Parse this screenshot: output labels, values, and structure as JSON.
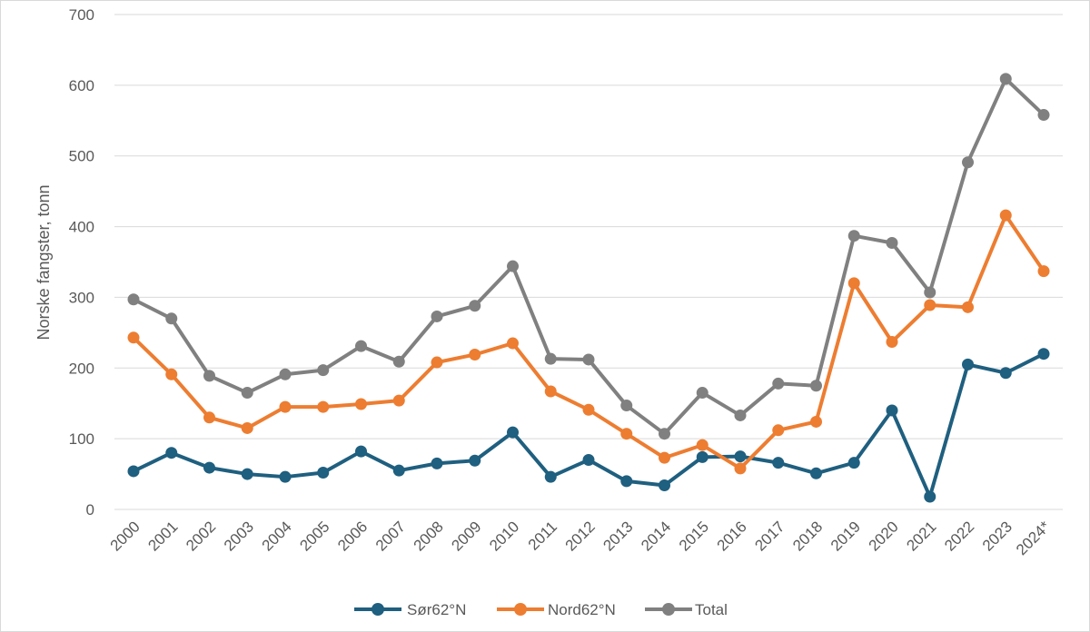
{
  "chart_data": {
    "type": "line",
    "title": "",
    "xlabel": "",
    "ylabel": "Norske fangster, tonn",
    "ylim": [
      0,
      700
    ],
    "yticks": [
      0,
      100,
      200,
      300,
      400,
      500,
      600,
      700
    ],
    "grid": "horizontal",
    "legend_position": "bottom",
    "categories": [
      "2000",
      "2001",
      "2002",
      "2003",
      "2004",
      "2005",
      "2006",
      "2007",
      "2008",
      "2009",
      "2010",
      "2011",
      "2012",
      "2013",
      "2014",
      "2015",
      "2016",
      "2017",
      "2018",
      "2019",
      "2020",
      "2021",
      "2022",
      "2023",
      "2024*"
    ],
    "series": [
      {
        "name": "Sør62°N",
        "color": "#1f5f7f",
        "values": [
          54,
          80,
          59,
          50,
          46,
          52,
          82,
          55,
          65,
          69,
          109,
          46,
          70,
          40,
          34,
          74,
          75,
          66,
          51,
          66,
          140,
          18,
          205,
          193,
          220
        ]
      },
      {
        "name": "Nord62°N",
        "color": "#ed7d31",
        "values": [
          243,
          191,
          130,
          115,
          145,
          145,
          149,
          154,
          208,
          219,
          235,
          167,
          141,
          107,
          73,
          91,
          58,
          112,
          124,
          320,
          237,
          289,
          286,
          416,
          337
        ]
      },
      {
        "name": "Total",
        "color": "#808080",
        "values": [
          297,
          270,
          189,
          165,
          191,
          197,
          231,
          209,
          273,
          288,
          344,
          213,
          212,
          147,
          107,
          165,
          133,
          178,
          175,
          387,
          377,
          307,
          491,
          609,
          558
        ]
      }
    ]
  }
}
